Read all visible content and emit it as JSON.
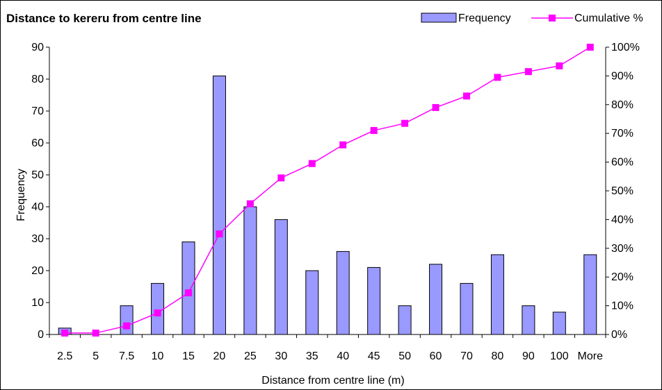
{
  "chart_data": {
    "type": "bar",
    "title": "Distance to kereru from centre line",
    "xlabel": "Distance from centre line (m)",
    "ylabel": "Frequency",
    "categories": [
      "2.5",
      "5",
      "7.5",
      "10",
      "15",
      "20",
      "25",
      "30",
      "35",
      "40",
      "45",
      "50",
      "60",
      "70",
      "80",
      "90",
      "100",
      "More"
    ],
    "ylim": [
      0,
      90
    ],
    "y_ticks": [
      0,
      10,
      20,
      30,
      40,
      50,
      60,
      70,
      80,
      90
    ],
    "y2lim": [
      0,
      100
    ],
    "y2_ticks": [
      "0%",
      "10%",
      "20%",
      "30%",
      "40%",
      "50%",
      "60%",
      "70%",
      "80%",
      "90%",
      "100%"
    ],
    "grid": false,
    "legend_position": "top-right",
    "series": [
      {
        "name": "Frequency",
        "kind": "bar",
        "axis": "left",
        "color": "#9999ff",
        "values": [
          2,
          0,
          9,
          16,
          29,
          81,
          40,
          36,
          20,
          26,
          21,
          9,
          22,
          16,
          25,
          9,
          7,
          25
        ]
      },
      {
        "name": "Cumulative %",
        "kind": "line",
        "axis": "right",
        "color": "#ff00ff",
        "values": [
          0.5,
          0.5,
          3,
          7.5,
          14.5,
          35,
          45.5,
          54.5,
          59.5,
          66,
          71,
          73.5,
          79,
          83,
          89.5,
          91.5,
          93.5,
          100
        ]
      }
    ]
  }
}
